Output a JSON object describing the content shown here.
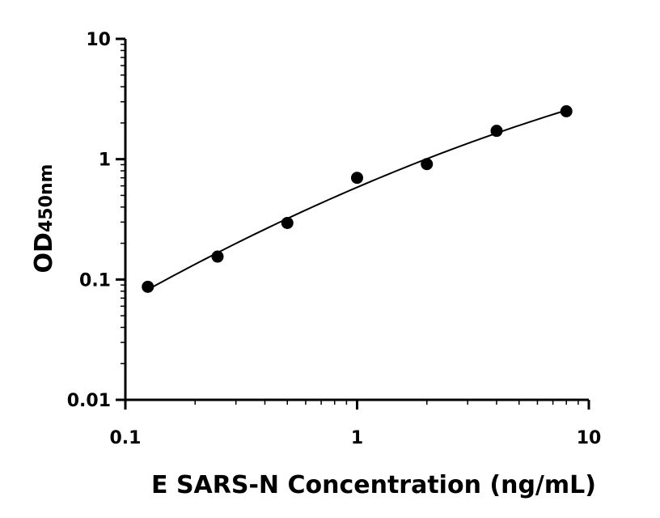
{
  "chart_data": {
    "type": "scatter",
    "xlabel": "E SARS-N Concentration (ng/mL)",
    "ylabel_main": "OD",
    "ylabel_sub": "450nm",
    "x_scale": "log",
    "y_scale": "log",
    "xlim": [
      0.1,
      10
    ],
    "ylim": [
      0.01,
      10
    ],
    "x_ticks": [
      {
        "value": 0.1,
        "label": "0.1"
      },
      {
        "value": 1,
        "label": "1"
      },
      {
        "value": 10,
        "label": "10"
      }
    ],
    "y_ticks": [
      {
        "value": 0.01,
        "label": "0.01"
      },
      {
        "value": 0.1,
        "label": "0.1"
      },
      {
        "value": 1,
        "label": "1"
      },
      {
        "value": 10,
        "label": "10"
      }
    ],
    "grid": false,
    "series": [
      {
        "x": [
          0.125,
          0.25,
          0.5,
          1,
          2,
          4,
          8
        ],
        "y": [
          0.087,
          0.155,
          0.295,
          0.7,
          0.91,
          1.72,
          2.5
        ],
        "color": "#000000",
        "marker": "circle",
        "fit_curve": true
      }
    ]
  }
}
